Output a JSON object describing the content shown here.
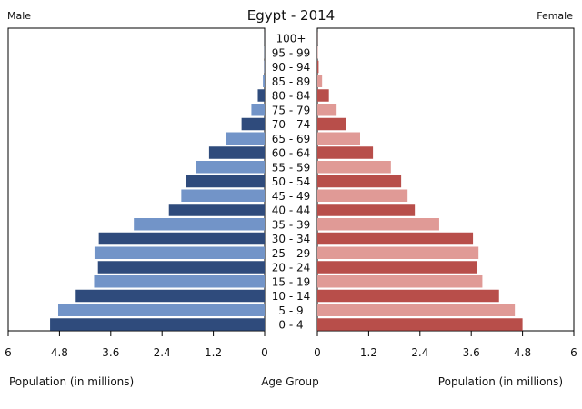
{
  "chart_data": {
    "type": "bar",
    "title": "Egypt - 2014",
    "left_label": "Male",
    "right_label": "Female",
    "xlabel_left": "Population (in millions)",
    "xlabel_center": "Age Group",
    "xlabel_right": "Population (in millions)",
    "xlim": [
      0,
      6
    ],
    "xticks": [
      0,
      1.2,
      2.4,
      3.6,
      4.8,
      6
    ],
    "xtick_labels_left": [
      "6",
      "4.8",
      "3.6",
      "2.4",
      "1.2",
      "0"
    ],
    "xtick_labels_right": [
      "0",
      "1.2",
      "2.4",
      "3.6",
      "4.8",
      "6"
    ],
    "categories": [
      "0 - 4",
      "5 - 9",
      "10 - 14",
      "15 - 19",
      "20 - 24",
      "25 - 29",
      "30 - 34",
      "35 - 39",
      "40 - 44",
      "45 - 49",
      "50 - 54",
      "55 - 59",
      "60 - 64",
      "65 - 69",
      "70 - 74",
      "75 - 79",
      "80 - 84",
      "85 - 89",
      "90 - 94",
      "95 - 99",
      "100+"
    ],
    "series": [
      {
        "name": "Male",
        "values": [
          5.02,
          4.83,
          4.42,
          3.99,
          3.9,
          3.98,
          3.88,
          3.06,
          2.24,
          1.95,
          1.83,
          1.61,
          1.3,
          0.91,
          0.54,
          0.31,
          0.16,
          0.04,
          0.01,
          0.005,
          0.002
        ]
      },
      {
        "name": "Female",
        "values": [
          4.8,
          4.62,
          4.25,
          3.86,
          3.74,
          3.77,
          3.64,
          2.85,
          2.28,
          2.11,
          1.96,
          1.72,
          1.3,
          1.0,
          0.68,
          0.45,
          0.27,
          0.11,
          0.03,
          0.01,
          0.003
        ]
      }
    ],
    "colors": {
      "male_dark": "#2f4b7c",
      "male_light": "#7294c8",
      "female_dark": "#b84e4a",
      "female_light": "#e09a96",
      "frame": "#000000"
    },
    "grid": false
  }
}
